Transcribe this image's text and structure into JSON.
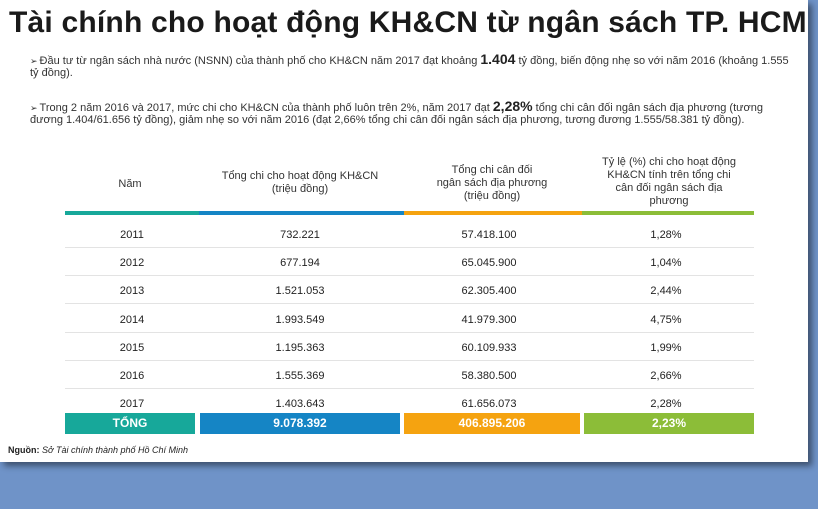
{
  "title": "Tài chính cho hoạt động KH&CN từ ngân sách TP. HCM",
  "para1": {
    "arrow": "➢",
    "pre": "Đầu tư từ ngân sách nhà nước (NSNN) của thành phố cho KH&CN năm 2017 đạt khoảng ",
    "bold": "1.404",
    "post": " tỷ đồng, biến động nhẹ so với năm 2016 (khoảng 1.555 tỷ đồng)."
  },
  "para2": {
    "arrow": "➢",
    "pre": "Trong 2 năm 2016 và 2017, mức chi cho KH&CN của thành phố luôn trên 2%, năm 2017 đạt ",
    "bold": "2,28%",
    "post": " tổng chi cân đối ngân sách địa phương (tương đương 1.404/61.656 tỷ đồng), giảm nhẹ so với năm 2016 (đạt 2,66% tổng chi cân đối ngân sách địa phương, tương đương 1.555/58.381 tỷ đồng)."
  },
  "table": {
    "headers": [
      {
        "line1": "Năm",
        "line2": "",
        "line3": "",
        "line4": ""
      },
      {
        "line1": "Tổng chi cho hoạt động KH&CN",
        "line2": "(triệu đồng)",
        "line3": "",
        "line4": ""
      },
      {
        "line1": "Tổng chi cân đối",
        "line2": "ngân sách địa phương",
        "line3": "(triệu đồng)",
        "line4": ""
      },
      {
        "line1": "Tỷ lệ (%) chi cho hoạt động",
        "line2": "KH&CN tính trên tổng chi",
        "line3": "cân đối  ngân sách địa",
        "line4": "phương"
      }
    ],
    "rows": [
      [
        "2011",
        "732.221",
        "57.418.100",
        "1,28%"
      ],
      [
        "2012",
        "677.194",
        "65.045.900",
        "1,04%"
      ],
      [
        "2013",
        "1.521.053",
        "62.305.400",
        "2,44%"
      ],
      [
        "2014",
        "1.993.549",
        "41.979.300",
        "4,75%"
      ],
      [
        "2015",
        "1.195.363",
        "60.109.933",
        "1,99%"
      ],
      [
        "2016",
        "1.555.369",
        "58.380.500",
        "2,66%"
      ],
      [
        "2017",
        "1.403.643",
        "61.656.073",
        "2,28%"
      ]
    ],
    "total": [
      "TỔNG",
      "9.078.392",
      "406.895.206",
      "2,23%"
    ],
    "colors": [
      "#17a89a",
      "#1585c5",
      "#f5a310",
      "#8cbd38"
    ]
  },
  "source": {
    "label": "Nguồn",
    "text": "Sở Tài chính thành phố Hồ Chí Minh"
  }
}
